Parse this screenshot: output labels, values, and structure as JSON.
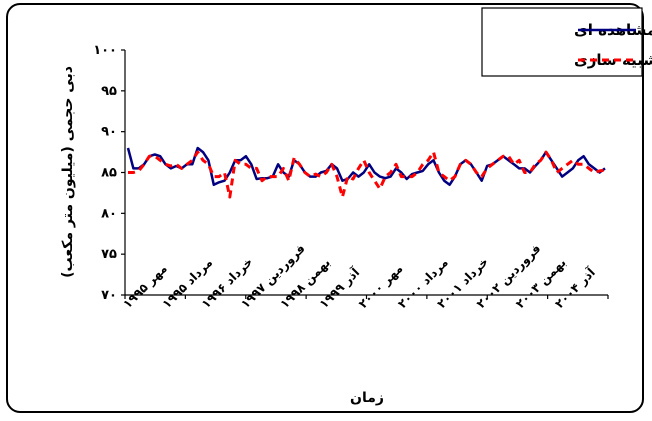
{
  "chart_data": {
    "type": "line",
    "title": "",
    "xlabel": "زمان",
    "ylabel": "دبی حجمی (میلیون متر مکعب)",
    "ylim": [
      70,
      100
    ],
    "yticks": [
      {
        "value": 100,
        "label": "۱۰۰"
      },
      {
        "value": 95,
        "label": "۹۵"
      },
      {
        "value": 90,
        "label": "۹۰"
      },
      {
        "value": 85,
        "label": "۸۵"
      },
      {
        "value": 80,
        "label": "۸۰"
      },
      {
        "value": 75,
        "label": "۷۵"
      },
      {
        "value": 70,
        "label": "۷۰"
      }
    ],
    "grid": false,
    "legend_position": "top-right",
    "x_tick_labels": [
      "مهر ۱۹۹۵",
      "مرداد ۱۹۹۵",
      "خرداد ۱۹۹۶",
      "فروردین ۱۹۹۷",
      "بهمن ۱۹۹۸",
      "آذر ۱۹۹۹",
      "مهر ۲۰۰۰",
      "مرداد ۲۰۰۰",
      "خرداد ۲۰۰۱",
      "فروردین ۲۰۰۲",
      "بهمن ۲۰۰۳",
      "آذر ۲۰۰۴"
    ],
    "series": [
      {
        "name": "مشاهده ای",
        "color": "#000080",
        "style": "solid",
        "values": [
          88,
          85.5,
          85.5,
          86,
          87,
          87.2,
          87,
          86,
          85.5,
          85.8,
          85.5,
          86,
          86,
          88,
          87.5,
          86.5,
          83.5,
          83.8,
          84,
          85,
          86.5,
          86.5,
          87,
          86,
          84.2,
          84.3,
          84.3,
          84.5,
          86,
          85,
          84.5,
          86.5,
          86,
          85,
          84.5,
          84.5,
          85,
          85.2,
          86,
          85.5,
          84,
          84.2,
          85,
          84.5,
          85,
          86,
          85,
          84.5,
          84.3,
          84.5,
          85.5,
          85,
          84.2,
          84.8,
          85,
          85.2,
          86,
          86.5,
          85,
          84,
          83.5,
          84.5,
          86,
          86.5,
          86,
          85,
          84,
          85.8,
          86,
          86.5,
          87,
          86.5,
          86,
          85.5,
          85.5,
          85,
          85.8,
          86.5,
          87.5,
          86.5,
          85.5,
          84.5,
          85,
          85.5,
          86.5,
          87,
          86,
          85.5,
          85,
          85.5
        ]
      },
      {
        "name": "شبیه سازی",
        "color": "#ff0000",
        "style": "dashed",
        "values": [
          85,
          85,
          85.2,
          86,
          87,
          87,
          86.5,
          86,
          85.8,
          86,
          85.5,
          86,
          86.5,
          87.5,
          86.5,
          86,
          84.5,
          84.5,
          85,
          82,
          86.5,
          86,
          86,
          85.5,
          85.5,
          84,
          84.5,
          84.5,
          84.5,
          85.5,
          84,
          86.8,
          86,
          85,
          84.5,
          84.8,
          84.5,
          85,
          86,
          84.5,
          82,
          84.5,
          84.2,
          85.5,
          86.5,
          85,
          84,
          83,
          84.5,
          85,
          86,
          84.5,
          84.5,
          84.5,
          85,
          86,
          86.5,
          87.5,
          85,
          84.5,
          84,
          84.5,
          86,
          86.5,
          86,
          85,
          84.5,
          85.5,
          86,
          86.5,
          87,
          87,
          86,
          86.5,
          85,
          85,
          86,
          86.5,
          87.5,
          86.5,
          85,
          85.5,
          86,
          86.5,
          86,
          86,
          85.5,
          85,
          85.2,
          85.3
        ]
      }
    ]
  }
}
